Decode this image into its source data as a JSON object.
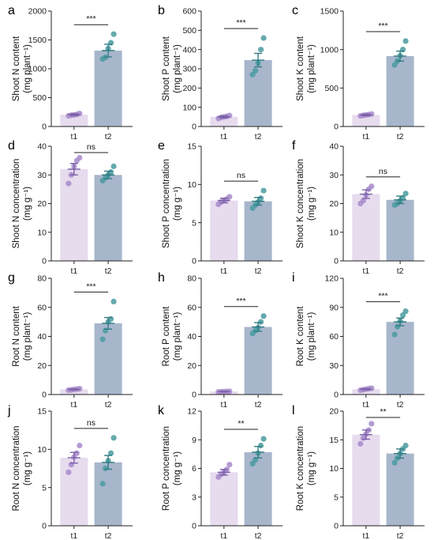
{
  "chart_data": [
    {
      "type": "bar",
      "label": "a",
      "ylabel": [
        "Shoot N content",
        "(mg plant⁻¹)"
      ],
      "ylim": [
        0,
        2000
      ],
      "yticks": [
        0,
        500,
        1000,
        1500,
        2000
      ],
      "categories": [
        "t1",
        "t2"
      ],
      "values": [
        205,
        1315
      ],
      "errors": [
        15,
        110
      ],
      "points": [
        [
          185,
          195,
          200,
          210,
          225
        ],
        [
          1170,
          1200,
          1350,
          1450,
          1600
        ]
      ],
      "significance": "***"
    },
    {
      "type": "bar",
      "label": "b",
      "ylabel": [
        "Shoot P content",
        "(mg plant⁻¹)"
      ],
      "ylim": [
        0,
        600
      ],
      "yticks": [
        0,
        100,
        200,
        300,
        400,
        500,
        600
      ],
      "categories": [
        "t1",
        "t2"
      ],
      "values": [
        50,
        345
      ],
      "errors": [
        5,
        35
      ],
      "points": [
        [
          42,
          47,
          50,
          53,
          57
        ],
        [
          270,
          290,
          330,
          400,
          460
        ]
      ],
      "significance": "***"
    },
    {
      "type": "bar",
      "label": "c",
      "ylabel": [
        "Shoot K content",
        "(mg plant⁻¹)"
      ],
      "ylim": [
        0,
        1500
      ],
      "yticks": [
        0,
        500,
        1000,
        1500
      ],
      "categories": [
        "t1",
        "t2"
      ],
      "values": [
        150,
        915
      ],
      "errors": [
        10,
        65
      ],
      "points": [
        [
          138,
          145,
          150,
          155,
          162
        ],
        [
          800,
          850,
          920,
          1000,
          1110
        ]
      ],
      "significance": "***"
    },
    {
      "type": "bar",
      "label": "d",
      "ylabel": [
        "Shoot N concentration",
        "(mg g⁻¹)"
      ],
      "ylim": [
        0,
        40
      ],
      "yticks": [
        0,
        10,
        20,
        30,
        40
      ],
      "categories": [
        "t1",
        "t2"
      ],
      "values": [
        32,
        30
      ],
      "errors": [
        2,
        1.3
      ],
      "points": [
        [
          27,
          30,
          33,
          35,
          36
        ],
        [
          28,
          29,
          30,
          31,
          33
        ]
      ],
      "significance": "ns"
    },
    {
      "type": "bar",
      "label": "e",
      "ylabel": [
        "Shoot P concentration",
        "(mg g⁻¹)"
      ],
      "ylim": [
        0,
        15
      ],
      "yticks": [
        0,
        5,
        10,
        15
      ],
      "categories": [
        "t1",
        "t2"
      ],
      "values": [
        7.9,
        7.8
      ],
      "errors": [
        0.3,
        0.5
      ],
      "points": [
        [
          7.4,
          7.7,
          7.9,
          8.1,
          8.4
        ],
        [
          6.9,
          7.3,
          7.7,
          8.2,
          9.2
        ]
      ],
      "significance": "ns"
    },
    {
      "type": "bar",
      "label": "f",
      "ylabel": [
        "Shoot K concentration",
        "(mg g⁻¹)"
      ],
      "ylim": [
        0,
        40
      ],
      "yticks": [
        0,
        10,
        20,
        30,
        40
      ],
      "categories": [
        "t1",
        "t2"
      ],
      "values": [
        23.3,
        21.3
      ],
      "errors": [
        1.5,
        1.3
      ],
      "points": [
        [
          20,
          21,
          23,
          25,
          26
        ],
        [
          19.5,
          20,
          21,
          22,
          23.5
        ]
      ],
      "significance": "ns"
    },
    {
      "type": "bar",
      "label": "g",
      "ylabel": [
        "Root N content",
        "(mg plant⁻¹)"
      ],
      "ylim": [
        0,
        80
      ],
      "yticks": [
        0,
        20,
        40,
        60,
        80
      ],
      "categories": [
        "t1",
        "t2"
      ],
      "values": [
        3.5,
        49
      ],
      "errors": [
        0.3,
        4
      ],
      "points": [
        [
          3,
          3.2,
          3.5,
          3.7,
          4
        ],
        [
          38,
          44,
          50,
          52,
          64
        ]
      ],
      "significance": "***"
    },
    {
      "type": "bar",
      "label": "h",
      "ylabel": [
        "Root P content",
        "(mg plant⁻¹)"
      ],
      "ylim": [
        0,
        80
      ],
      "yticks": [
        0,
        20,
        40,
        60,
        80
      ],
      "categories": [
        "t1",
        "t2"
      ],
      "values": [
        2,
        46.5
      ],
      "errors": [
        0.2,
        3
      ],
      "points": [
        [
          1.8,
          1.9,
          2,
          2.1,
          2.2
        ],
        [
          42,
          44,
          46,
          50,
          54
        ]
      ],
      "significance": "***"
    },
    {
      "type": "bar",
      "label": "i",
      "ylabel": [
        "Root K content",
        "(mg plant⁻¹)"
      ],
      "ylim": [
        0,
        120
      ],
      "yticks": [
        0,
        30,
        60,
        90,
        120
      ],
      "categories": [
        "t1",
        "t2"
      ],
      "values": [
        5.5,
        75
      ],
      "errors": [
        0.5,
        4
      ],
      "points": [
        [
          4.5,
          5,
          5.5,
          6,
          6.5
        ],
        [
          62,
          70,
          76,
          82,
          86
        ]
      ],
      "significance": "***"
    },
    {
      "type": "bar",
      "label": "j",
      "ylabel": [
        "Root N concentration",
        "(mg g⁻¹)"
      ],
      "ylim": [
        0,
        15
      ],
      "yticks": [
        0,
        5,
        10,
        15
      ],
      "categories": [
        "t1",
        "t2"
      ],
      "values": [
        8.9,
        8.3
      ],
      "errors": [
        0.7,
        0.9
      ],
      "points": [
        [
          7,
          8,
          9,
          9.5,
          10.5
        ],
        [
          5.5,
          7.5,
          8.5,
          9.5,
          11.5
        ]
      ],
      "significance": "ns"
    },
    {
      "type": "bar",
      "label": "k",
      "ylabel": [
        "Root P concentration",
        "(mg g⁻¹)"
      ],
      "ylim": [
        0,
        12
      ],
      "yticks": [
        0,
        3,
        6,
        9,
        12
      ],
      "categories": [
        "t1",
        "t2"
      ],
      "values": [
        5.6,
        7.7
      ],
      "errors": [
        0.3,
        0.6
      ],
      "points": [
        [
          5.1,
          5.4,
          5.6,
          5.9,
          6.4
        ],
        [
          6.5,
          6.9,
          7.6,
          8.4,
          9.1
        ]
      ],
      "significance": "**"
    },
    {
      "type": "bar",
      "label": "l",
      "ylabel": [
        "Root K concentration",
        "(mg g⁻¹)"
      ],
      "ylim": [
        0,
        20
      ],
      "yticks": [
        0,
        5,
        10,
        15,
        20
      ],
      "categories": [
        "t1",
        "t2"
      ],
      "values": [
        15.9,
        12.6
      ],
      "errors": [
        0.8,
        0.8
      ],
      "points": [
        [
          14.3,
          15.3,
          16,
          16.7,
          17.8
        ],
        [
          11,
          11.8,
          12.6,
          13.4,
          14
        ]
      ],
      "significance": "**"
    }
  ],
  "colors": {
    "t1_bar": "#e7dbee",
    "t2_bar": "#a8b6cc",
    "t1_point": "#a78bcb",
    "t2_point": "#4a9ba0",
    "t1_err": "#7b62a8",
    "t2_err": "#2f7c82",
    "axis": "#222222"
  }
}
